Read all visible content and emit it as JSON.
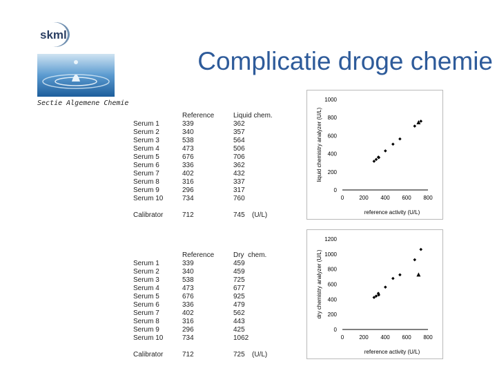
{
  "header": {
    "logo_text": "skml",
    "title": "Complicatie droge chemie",
    "section": "Sectie Algemene Chemie"
  },
  "tables": [
    {
      "headers": [
        "",
        "Reference",
        "Liquid chem."
      ],
      "rows": [
        [
          "Serum 1",
          "339",
          "362"
        ],
        [
          "Serum 2",
          "340",
          "357"
        ],
        [
          "Serum 3",
          "538",
          "564"
        ],
        [
          "Serum 4",
          "473",
          "506"
        ],
        [
          "Serum 5",
          "676",
          "706"
        ],
        [
          "Serum 6",
          "336",
          "362"
        ],
        [
          "Serum 7",
          "402",
          "432"
        ],
        [
          "Serum 8",
          "316",
          "337"
        ],
        [
          "Serum 9",
          "296",
          "317"
        ],
        [
          "Serum 10",
          "734",
          "760"
        ]
      ],
      "calibrator": {
        "label": "Calibrator",
        "reference": "712",
        "value": "745",
        "unit": "(U/L)"
      }
    },
    {
      "headers": [
        "",
        "Reference",
        "Dry  chem."
      ],
      "rows": [
        [
          "Serum 1",
          "339",
          "459"
        ],
        [
          "Serum 2",
          "340",
          "459"
        ],
        [
          "Serum 3",
          "538",
          "725"
        ],
        [
          "Serum 4",
          "473",
          "677"
        ],
        [
          "Serum 5",
          "676",
          "925"
        ],
        [
          "Serum 6",
          "336",
          "479"
        ],
        [
          "Serum 7",
          "402",
          "562"
        ],
        [
          "Serum 8",
          "316",
          "443"
        ],
        [
          "Serum 9",
          "296",
          "425"
        ],
        [
          "Serum 10",
          "734",
          "1062"
        ]
      ],
      "calibrator": {
        "label": "Calibrator",
        "reference": "712",
        "value": "725",
        "unit": "(U/L)"
      }
    }
  ],
  "chart_data": [
    {
      "type": "scatter",
      "xlabel": "reference activity (U/L)",
      "ylabel": "liquid chemistry analyzer (U/L)",
      "xlim": [
        0,
        800
      ],
      "ylim": [
        0,
        1000
      ],
      "xticks": [
        "0",
        "200",
        "400",
        "600",
        "800"
      ],
      "yticks": [
        "0",
        "200",
        "400",
        "600",
        "800",
        "1000"
      ],
      "grid": false,
      "series": [
        {
          "marker": "diamond",
          "points": [
            [
              339,
              362
            ],
            [
              340,
              357
            ],
            [
              538,
              564
            ],
            [
              473,
              506
            ],
            [
              676,
              706
            ],
            [
              336,
              362
            ],
            [
              402,
              432
            ],
            [
              316,
              337
            ],
            [
              296,
              317
            ],
            [
              734,
              760
            ]
          ]
        },
        {
          "marker": "triangle",
          "points": [
            [
              712,
              745
            ]
          ]
        }
      ]
    },
    {
      "type": "scatter",
      "xlabel": "reference activity (U/L)",
      "ylabel": "dry chemistry analyzer (U/L)",
      "xlim": [
        0,
        800
      ],
      "ylim": [
        0,
        1200
      ],
      "xticks": [
        "0",
        "200",
        "400",
        "600",
        "800"
      ],
      "yticks": [
        "0",
        "200",
        "400",
        "600",
        "800",
        "1000",
        "1200"
      ],
      "grid": false,
      "series": [
        {
          "marker": "diamond",
          "points": [
            [
              339,
              459
            ],
            [
              340,
              459
            ],
            [
              538,
              725
            ],
            [
              473,
              677
            ],
            [
              676,
              925
            ],
            [
              336,
              479
            ],
            [
              402,
              562
            ],
            [
              316,
              443
            ],
            [
              296,
              425
            ],
            [
              734,
              1062
            ]
          ]
        },
        {
          "marker": "triangle",
          "points": [
            [
              712,
              725
            ]
          ]
        }
      ]
    }
  ]
}
